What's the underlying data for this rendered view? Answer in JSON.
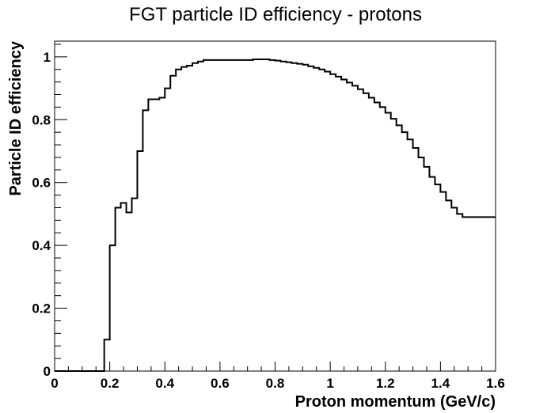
{
  "chart_data": {
    "type": "line",
    "style": "step-histogram",
    "title": "FGT particle ID efficiency - protons",
    "xlabel": "Proton momentum (GeV/c)",
    "ylabel": "Particle ID efficiency",
    "xlim": [
      0,
      1.6
    ],
    "ylim": [
      0,
      1.05
    ],
    "x_ticks": [
      0,
      0.2,
      0.4,
      0.6,
      0.8,
      1,
      1.2,
      1.4,
      1.6
    ],
    "x_tick_labels": [
      "0",
      "0.2",
      "0.4",
      "0.6",
      "0.8",
      "1",
      "1.2",
      "1.4",
      "1.6"
    ],
    "y_ticks": [
      0,
      0.2,
      0.4,
      0.6,
      0.8,
      1
    ],
    "y_tick_labels": [
      "0",
      "0.2",
      "0.4",
      "0.6",
      "0.8",
      "1"
    ],
    "grid": false,
    "bin_width": 0.02,
    "bin_edges_start": 0,
    "values": [
      0,
      0,
      0,
      0,
      0,
      0,
      0,
      0,
      0,
      0.1,
      0.4,
      0.52,
      0.535,
      0.505,
      0.55,
      0.7,
      0.83,
      0.865,
      0.865,
      0.87,
      0.9,
      0.94,
      0.96,
      0.968,
      0.972,
      0.98,
      0.985,
      0.99,
      0.99,
      0.99,
      0.99,
      0.99,
      0.99,
      0.99,
      0.99,
      0.99,
      0.992,
      0.992,
      0.992,
      0.99,
      0.988,
      0.985,
      0.983,
      0.98,
      0.978,
      0.975,
      0.97,
      0.965,
      0.96,
      0.953,
      0.945,
      0.937,
      0.928,
      0.918,
      0.908,
      0.897,
      0.884,
      0.87,
      0.855,
      0.84,
      0.822,
      0.803,
      0.782,
      0.76,
      0.737,
      0.71,
      0.68,
      0.65,
      0.618,
      0.594,
      0.57,
      0.543,
      0.52,
      0.5,
      0.49,
      0.49,
      0.49,
      0.49,
      0.49,
      0.49
    ],
    "line_color": "#000000"
  }
}
